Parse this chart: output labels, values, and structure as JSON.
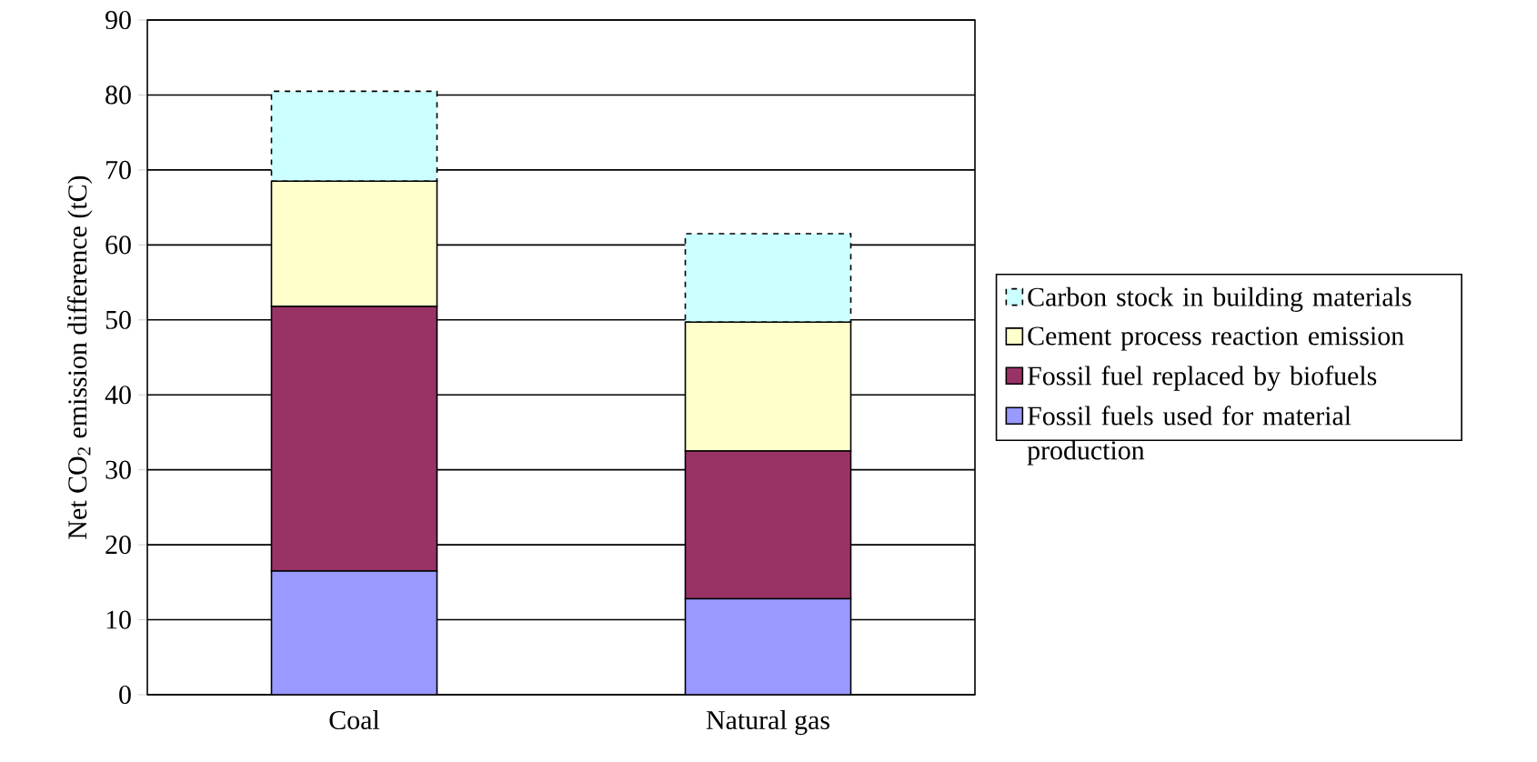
{
  "chart_data": {
    "type": "bar",
    "stacked": true,
    "ylabel": "Net CO$_{2}$ emission difference (tC)",
    "categories": [
      "Coal",
      "Natural gas"
    ],
    "series": [
      {
        "name": "Fossil fuels used for material production",
        "color": "#9999ff",
        "values": [
          16.5,
          12.8
        ]
      },
      {
        "name": "Fossil fuel replaced by biofuels",
        "color": "#993366",
        "values": [
          35.3,
          19.7
        ]
      },
      {
        "name": "Cement process reaction emission",
        "color": "#ffffcc",
        "values": [
          16.7,
          17.2
        ]
      },
      {
        "name": "Carbon stock in building materials",
        "color": "#ccffff",
        "values": [
          12.0,
          11.8
        ],
        "line_style": "dashed"
      }
    ],
    "ylim": [
      0,
      90
    ],
    "yticks": [
      0,
      10,
      20,
      30,
      40,
      50,
      60,
      70,
      80,
      90
    ],
    "grid": "y",
    "legend": "right"
  }
}
